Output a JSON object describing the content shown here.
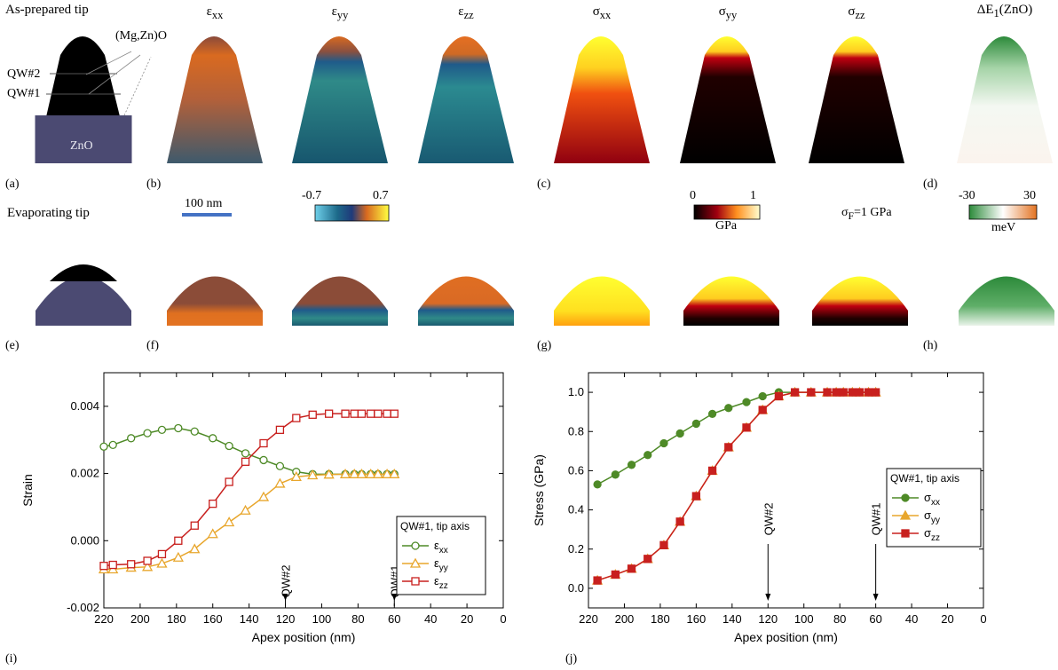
{
  "top": {
    "row1_title": "As-prepared tip",
    "row2_title": "Evaporating tip",
    "layer_labels": {
      "mgzno": "(Mg,Zn)O",
      "qw2": "QW#2",
      "qw1": "QW#1",
      "zno": "ZnO"
    },
    "col_titles": {
      "exx": {
        "base": "ε",
        "sub": "xx"
      },
      "eyy": {
        "base": "ε",
        "sub": "yy"
      },
      "ezz": {
        "base": "ε",
        "sub": "zz"
      },
      "sxx": {
        "base": "σ",
        "sub": "xx"
      },
      "syy": {
        "base": "σ",
        "sub": "yy"
      },
      "szz": {
        "base": "σ",
        "sub": "zz"
      },
      "de1": {
        "base": "ΔE",
        "sub": "1",
        "suffix": "(ZnO)"
      }
    },
    "panel_letters": [
      "(a)",
      "(b)",
      "(c)",
      "(d)",
      "(e)",
      "(f)",
      "(g)",
      "(h)",
      "(i)",
      "(j)"
    ],
    "scalebar_label": "100 nm",
    "strain_cbar": {
      "min": "-0.7",
      "max": "0.7"
    },
    "stress_cbar": {
      "min": "0",
      "max": "1",
      "unit": "GPa"
    },
    "sigmaF": {
      "base": "σ",
      "sub": "F",
      "rest": "=1 GPa"
    },
    "de_cbar": {
      "min": "-30",
      "max": "30",
      "unit": "meV"
    },
    "colors": {
      "tip_black": "#000000",
      "zno": "#4b4a72",
      "scalebar": "#4472c4"
    }
  },
  "chart_data": [
    {
      "type": "line",
      "panel": "(i)",
      "xlabel": "Apex position (nm)",
      "ylabel": "Strain",
      "xlim": [
        220,
        0
      ],
      "ylim": [
        -0.002,
        0.005
      ],
      "xticks": [
        220,
        200,
        180,
        160,
        140,
        120,
        100,
        80,
        60,
        40,
        20,
        0
      ],
      "yticks": [
        -0.002,
        0.0,
        0.002,
        0.004
      ],
      "ytick_labels": [
        "-0.002",
        "0.000",
        "0.002",
        "0.004"
      ],
      "legend_title": "QW#1, tip axis",
      "legend_position": "lower-right",
      "annotations": [
        {
          "text": "QW#2",
          "x": 120
        },
        {
          "text": "QW#1",
          "x": 60
        }
      ],
      "x": [
        220,
        215,
        205,
        196,
        188,
        179,
        170,
        160,
        151,
        142,
        132,
        123,
        114,
        105,
        96,
        87,
        82,
        78,
        73,
        69,
        64,
        60
      ],
      "series": [
        {
          "name": "xx",
          "base": "ε",
          "color": "#4e8a27",
          "marker": "circle",
          "values": [
            0.0028,
            0.00285,
            0.00305,
            0.0032,
            0.0033,
            0.00335,
            0.00325,
            0.00305,
            0.00282,
            0.0026,
            0.0024,
            0.00222,
            0.00205,
            0.00198,
            0.00198,
            0.00198,
            0.00198,
            0.00198,
            0.00198,
            0.00198,
            0.00198,
            0.00198
          ]
        },
        {
          "name": "yy",
          "base": "ε",
          "color": "#e8a62c",
          "marker": "triangle",
          "values": [
            -0.00085,
            -0.00085,
            -0.0008,
            -0.00078,
            -0.00068,
            -0.0005,
            -0.00025,
            0.0002,
            0.00055,
            0.0009,
            0.0013,
            0.0017,
            0.0019,
            0.00195,
            0.00197,
            0.00198,
            0.00198,
            0.00198,
            0.00198,
            0.00198,
            0.00198,
            0.00198
          ]
        },
        {
          "name": "zz",
          "base": "ε",
          "color": "#c8201e",
          "marker": "square",
          "values": [
            -0.00075,
            -0.00072,
            -0.0007,
            -0.0006,
            -0.0004,
            0.0,
            0.00045,
            0.0011,
            0.00175,
            0.00235,
            0.0029,
            0.0033,
            0.00365,
            0.00375,
            0.00378,
            0.00378,
            0.00378,
            0.00378,
            0.00378,
            0.00378,
            0.00378,
            0.00378
          ]
        }
      ]
    },
    {
      "type": "line",
      "panel": "(j)",
      "xlabel": "Apex position (nm)",
      "ylabel": "Stress (GPa)",
      "xlim": [
        220,
        0
      ],
      "ylim": [
        -0.1,
        1.1
      ],
      "xticks": [
        220,
        200,
        180,
        160,
        140,
        120,
        100,
        80,
        60,
        40,
        20,
        0
      ],
      "yticks": [
        0.0,
        0.2,
        0.4,
        0.6,
        0.8,
        1.0
      ],
      "ytick_labels": [
        "0.0",
        "0.2",
        "0.4",
        "0.6",
        "0.8",
        "1.0"
      ],
      "legend_title": "QW#1, tip axis",
      "legend_position": "right",
      "annotations": [
        {
          "text": "QW#2",
          "x": 120
        },
        {
          "text": "QW#1",
          "x": 60
        }
      ],
      "x": [
        215,
        205,
        196,
        187,
        178,
        169,
        160,
        151,
        142,
        132,
        123,
        114,
        105,
        96,
        87,
        82,
        78,
        73,
        69,
        64,
        60
      ],
      "series": [
        {
          "name": "xx",
          "base": "σ",
          "color": "#4e8a27",
          "marker": "circle",
          "values": [
            0.53,
            0.58,
            0.63,
            0.68,
            0.74,
            0.79,
            0.84,
            0.89,
            0.92,
            0.95,
            0.98,
            1.0,
            1.0,
            1.0,
            1.0,
            1.0,
            1.0,
            1.0,
            1.0,
            1.0,
            1.0
          ]
        },
        {
          "name": "yy",
          "base": "σ",
          "color": "#e8a62c",
          "marker": "triangle",
          "values": [
            0.04,
            0.07,
            0.1,
            0.15,
            0.22,
            0.34,
            0.47,
            0.6,
            0.72,
            0.82,
            0.91,
            0.98,
            1.0,
            1.0,
            1.0,
            1.0,
            1.0,
            1.0,
            1.0,
            1.0,
            1.0
          ]
        },
        {
          "name": "zz",
          "base": "σ",
          "color": "#c8201e",
          "marker": "square",
          "values": [
            0.04,
            0.07,
            0.1,
            0.15,
            0.22,
            0.34,
            0.47,
            0.6,
            0.72,
            0.82,
            0.91,
            0.98,
            1.0,
            1.0,
            1.0,
            1.0,
            1.0,
            1.0,
            1.0,
            1.0,
            1.0
          ]
        }
      ]
    }
  ]
}
